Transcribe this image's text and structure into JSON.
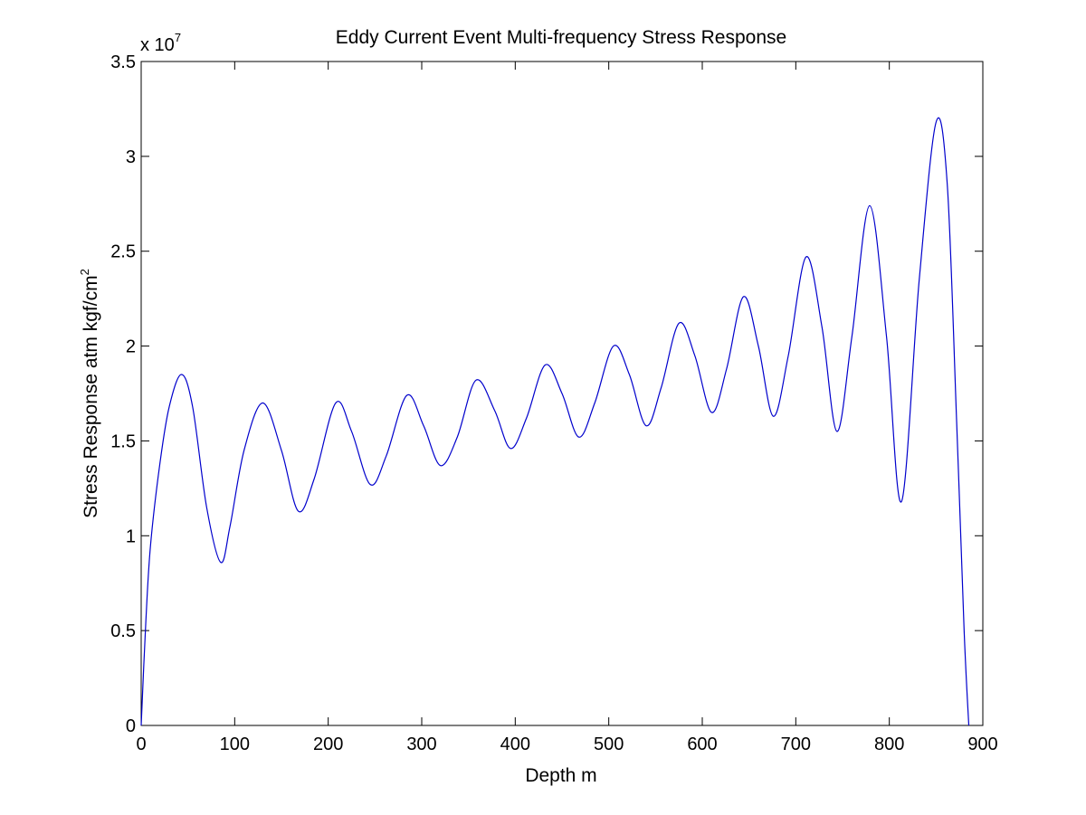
{
  "chart_data": {
    "type": "line",
    "title": "Eddy Current Event Multi-frequency Stress Response",
    "xlabel": "Depth m",
    "ylabel": {
      "base": "Stress Response atm kgf/cm",
      "superscript": "2"
    },
    "y_multiplier": {
      "base": "x 10",
      "exponent": "7"
    },
    "xlim": [
      0,
      900
    ],
    "ylim": [
      0,
      3.5
    ],
    "y_scale_factor": 10000000,
    "x_ticks": [
      "0",
      "100",
      "200",
      "300",
      "400",
      "500",
      "600",
      "700",
      "800",
      "900"
    ],
    "y_ticks": [
      "0",
      "0.5",
      "1",
      "1.5",
      "2",
      "2.5",
      "3",
      "3.5"
    ],
    "grid": false,
    "line_color": "#0000cc",
    "series": [
      {
        "x": [
          0,
          5,
          10,
          20,
          30,
          43,
          55,
          70,
          85,
          95,
          110,
          130,
          150,
          168,
          185,
          208,
          225,
          245,
          262,
          284,
          302,
          320,
          338,
          358,
          378,
          395,
          412,
          432,
          450,
          468,
          485,
          505,
          522,
          540,
          556,
          575,
          592,
          610,
          626,
          644,
          660,
          676,
          692,
          711,
          728,
          744,
          760,
          779,
          797,
          813,
          832,
          850,
          862,
          872,
          880,
          885
        ],
        "y": [
          0.0,
          0.55,
          0.95,
          1.38,
          1.68,
          1.85,
          1.68,
          1.15,
          0.86,
          1.05,
          1.45,
          1.7,
          1.45,
          1.13,
          1.3,
          1.7,
          1.55,
          1.27,
          1.42,
          1.74,
          1.58,
          1.37,
          1.52,
          1.82,
          1.66,
          1.46,
          1.62,
          1.9,
          1.75,
          1.52,
          1.7,
          2.0,
          1.85,
          1.58,
          1.78,
          2.12,
          1.95,
          1.65,
          1.88,
          2.26,
          2.0,
          1.63,
          1.95,
          2.47,
          2.1,
          1.55,
          2.05,
          2.74,
          2.05,
          1.18,
          2.35,
          3.18,
          2.85,
          1.6,
          0.5,
          0.0
        ]
      }
    ]
  }
}
